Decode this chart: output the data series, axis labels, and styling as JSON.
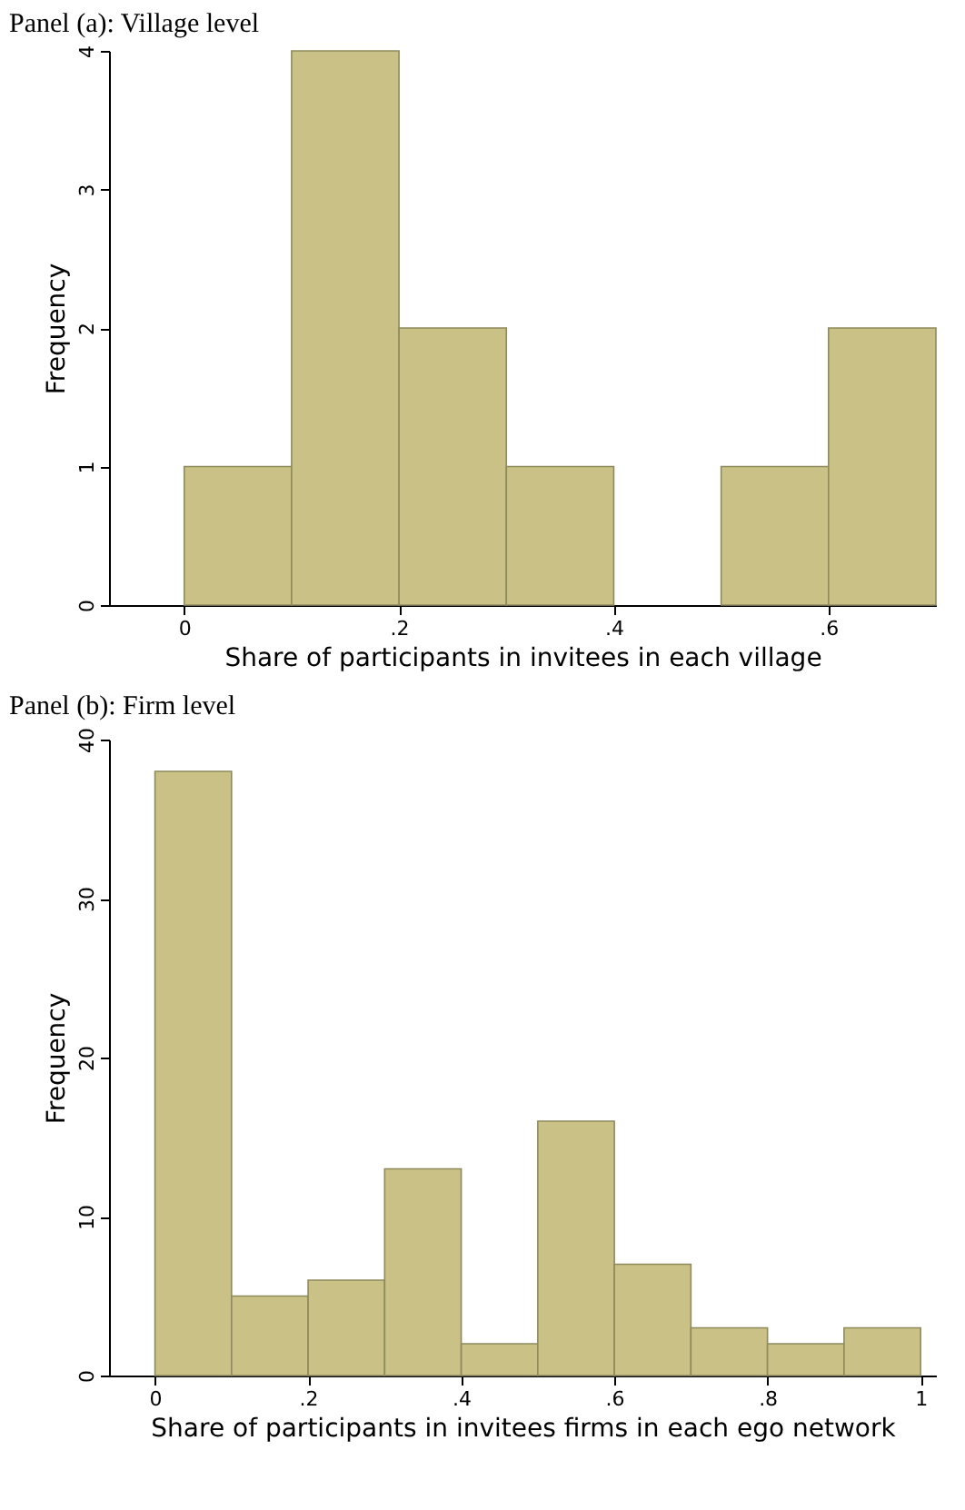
{
  "chart_data": [
    {
      "type": "histogram",
      "title": "Panel (a): Village level",
      "xlabel": "Share of participants in invitees in each village",
      "ylabel": "Frequency",
      "bins": [
        0,
        0.1,
        0.2,
        0.3,
        0.4,
        0.5,
        0.6,
        0.7
      ],
      "values": [
        1,
        4,
        2,
        1,
        0,
        1,
        2
      ],
      "color": "#c9c185",
      "xlim": [
        -0.07,
        0.7
      ],
      "xticks": [
        0,
        {
          "value": 0.2,
          "label": ".2"
        },
        {
          "value": 0.4,
          "label": ".4"
        },
        {
          "value": 0.6,
          "label": ".6"
        }
      ],
      "ylim": [
        0,
        4
      ],
      "yticks": [
        0,
        1,
        2,
        3,
        4
      ],
      "grid": false
    },
    {
      "type": "histogram",
      "title": "Panel (b): Firm level",
      "xlabel": "Share of participants in invitees firms in each ego network",
      "ylabel": "Frequency",
      "bins": [
        0,
        0.1,
        0.2,
        0.3,
        0.4,
        0.5,
        0.6,
        0.7,
        0.8,
        0.9,
        1
      ],
      "values": [
        38,
        5,
        6,
        13,
        2,
        16,
        7,
        3,
        2,
        3
      ],
      "color": "#c9c185",
      "xlim": [
        -0.06,
        1.02
      ],
      "xticks": [
        0,
        {
          "value": 0.2,
          "label": ".2"
        },
        {
          "value": 0.4,
          "label": ".4"
        },
        {
          "value": 0.6,
          "label": ".6"
        },
        {
          "value": 0.8,
          "label": ".8"
        },
        1
      ],
      "ylim": [
        0,
        40
      ],
      "yticks": [
        0,
        10,
        20,
        30,
        40
      ],
      "grid": false
    }
  ]
}
